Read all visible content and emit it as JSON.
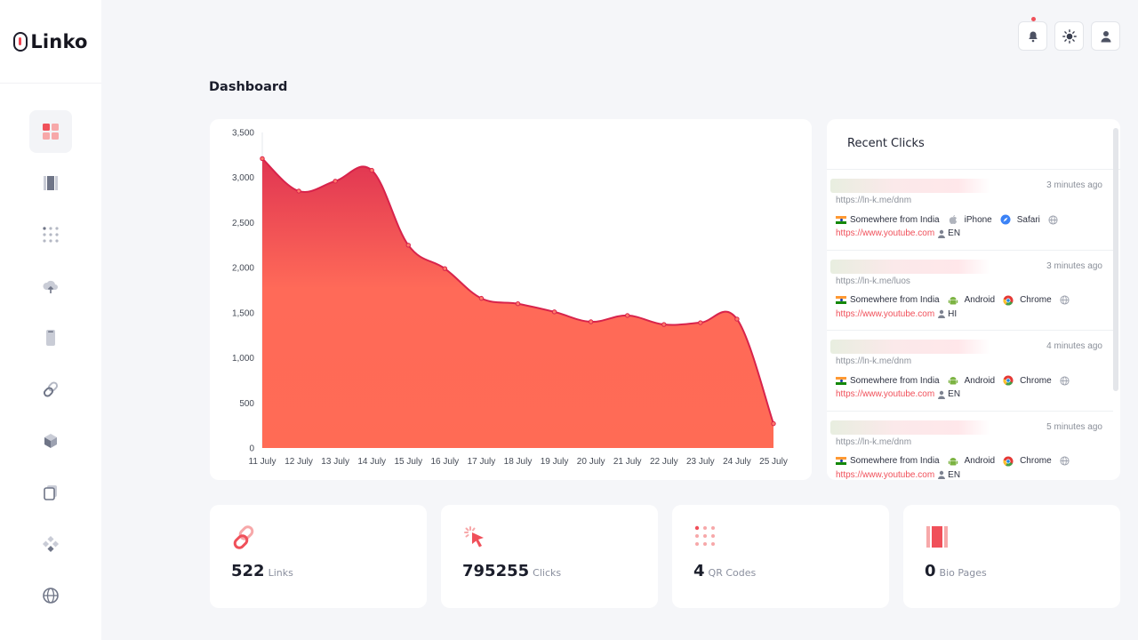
{
  "app": {
    "name": "Linko"
  },
  "page": {
    "title": "Dashboard"
  },
  "colors": {
    "accent": "#f0505a",
    "area_top": "#e23b56",
    "area_bottom": "#ff6b55",
    "line": "#d8234b"
  },
  "chart_data": {
    "type": "area",
    "categories": [
      "11 July",
      "12 July",
      "13 July",
      "14 July",
      "15 July",
      "16 July",
      "17 July",
      "18 July",
      "19 July",
      "20 July",
      "21 July",
      "22 July",
      "23 July",
      "24 July",
      "25 July"
    ],
    "values": [
      3210,
      2850,
      2960,
      3080,
      2250,
      1990,
      1660,
      1600,
      1510,
      1400,
      1470,
      1370,
      1390,
      1430,
      270
    ],
    "yticks": [
      "3,500",
      "3,000",
      "2,500",
      "2,000",
      "1,500",
      "1,000",
      "500",
      "0"
    ],
    "ylim": [
      0,
      3500
    ],
    "title": "",
    "xlabel": "",
    "ylabel": ""
  },
  "recent": {
    "title": "Recent Clicks",
    "items": [
      {
        "time": "3 minutes ago",
        "short_link": "https://ln-k.me/dnm",
        "location": "Somewhere from India",
        "os": "iPhone",
        "os_icon": "apple-icon",
        "browser": "Safari",
        "browser_icon": "safari-icon",
        "referrer": "https://www.youtube.com",
        "lang": "EN"
      },
      {
        "time": "3 minutes ago",
        "short_link": "https://ln-k.me/luos",
        "location": "Somewhere from India",
        "os": "Android",
        "os_icon": "android-icon",
        "browser": "Chrome",
        "browser_icon": "chrome-icon",
        "referrer": "https://www.youtube.com",
        "lang": "HI"
      },
      {
        "time": "4 minutes ago",
        "short_link": "https://ln-k.me/dnm",
        "location": "Somewhere from India",
        "os": "Android",
        "os_icon": "android-icon",
        "browser": "Chrome",
        "browser_icon": "chrome-icon",
        "referrer": "https://www.youtube.com",
        "lang": "EN"
      },
      {
        "time": "5 minutes ago",
        "short_link": "https://ln-k.me/dnm",
        "location": "Somewhere from India",
        "os": "Android",
        "os_icon": "android-icon",
        "browser": "Chrome",
        "browser_icon": "chrome-icon",
        "referrer": "https://www.youtube.com",
        "lang": "EN"
      }
    ]
  },
  "stats": [
    {
      "value": "522",
      "label": "Links",
      "icon": "link-icon"
    },
    {
      "value": "795255",
      "label": "Clicks",
      "icon": "cursor-click-icon"
    },
    {
      "value": "4",
      "label": "QR Codes",
      "icon": "qr-dots-icon"
    },
    {
      "value": "0",
      "label": "Bio Pages",
      "icon": "bio-page-icon"
    }
  ],
  "sidebar": {
    "items": [
      {
        "icon": "dashboard-icon"
      },
      {
        "icon": "bio-page-icon"
      },
      {
        "icon": "qr-code-icon"
      },
      {
        "icon": "cloud-upload-icon"
      },
      {
        "icon": "mobile-icon"
      },
      {
        "icon": "link-icon"
      },
      {
        "icon": "cube-icon"
      },
      {
        "icon": "copy-icon"
      },
      {
        "icon": "apps-icon"
      },
      {
        "icon": "globe-icon"
      }
    ]
  }
}
